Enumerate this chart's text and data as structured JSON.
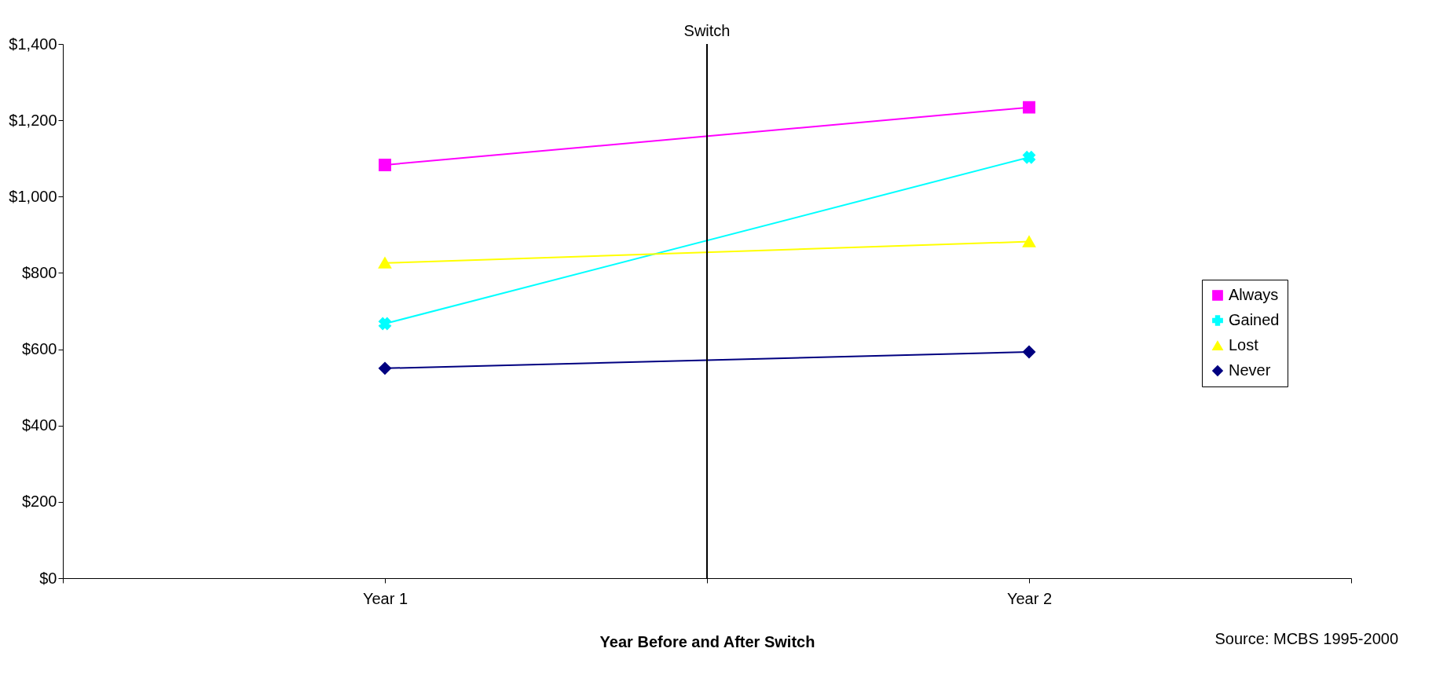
{
  "chart_data": {
    "type": "line",
    "xlabel": "Year Before and After Switch",
    "categories": [
      "Year 1",
      "Year 2"
    ],
    "ylim": [
      0,
      1400
    ],
    "yticks": [
      {
        "value": 0,
        "label": "$0"
      },
      {
        "value": 200,
        "label": "$200"
      },
      {
        "value": 400,
        "label": "$400"
      },
      {
        "value": 600,
        "label": "$600"
      },
      {
        "value": 800,
        "label": "$800"
      },
      {
        "value": 1000,
        "label": "$1,000"
      },
      {
        "value": 1200,
        "label": "$1,200"
      },
      {
        "value": 1400,
        "label": "$1,400"
      }
    ],
    "series": [
      {
        "name": "Always",
        "color": "#ff00ff",
        "marker": "square",
        "values": [
          1083,
          1234
        ]
      },
      {
        "name": "Gained",
        "color": "#00ffff",
        "marker": "cross",
        "values": [
          667,
          1103
        ]
      },
      {
        "name": "Lost",
        "color": "#ffff00",
        "marker": "triangle",
        "values": [
          826,
          882
        ]
      },
      {
        "name": "Never",
        "color": "#000080",
        "marker": "diamond",
        "values": [
          550,
          593
        ]
      }
    ],
    "title": "Switch",
    "grid": false,
    "legend": "right",
    "annotations": [
      "Source:  MCBS 1995-2000"
    ]
  }
}
